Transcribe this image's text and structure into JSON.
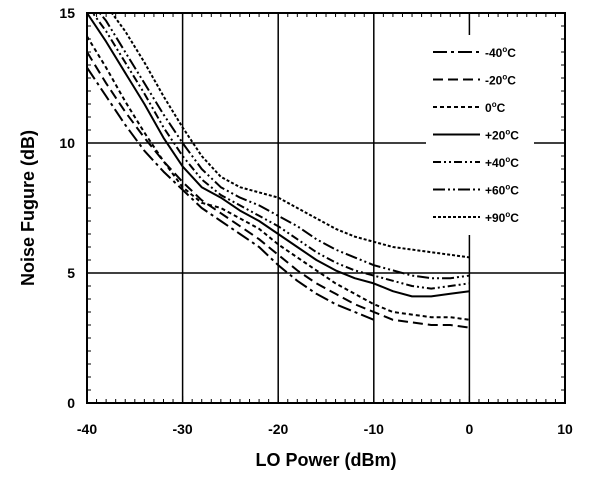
{
  "chart_data": {
    "type": "line",
    "title": "",
    "xlabel": "LO Power (dBm)",
    "ylabel": "Noise Fugure (dB)",
    "xlim": [
      -40,
      10
    ],
    "ylim": [
      0,
      15
    ],
    "xticks": [
      -40,
      -30,
      -20,
      -10,
      0,
      10
    ],
    "yticks": [
      0,
      5,
      10,
      15
    ],
    "x_tick_labels": [
      "-40",
      "-30",
      "-20",
      "-10",
      "0",
      "10"
    ],
    "y_tick_labels": [
      "0",
      "5",
      "10",
      "15"
    ],
    "grid": true,
    "legend_position": "top-right",
    "series": [
      {
        "name": "-40°C",
        "label": {
          "sign": "-40",
          "degree": "o",
          "unit": "C"
        },
        "dash": "14,4,3,4",
        "x": [
          -40,
          -38,
          -36,
          -34,
          -32,
          -30,
          -28,
          -26,
          -24,
          -22,
          -20,
          -18,
          -16,
          -14,
          -12,
          -10
        ],
        "y": [
          12.9,
          11.8,
          10.7,
          9.7,
          8.9,
          8.2,
          7.5,
          7.0,
          6.5,
          6.0,
          5.3,
          4.7,
          4.2,
          3.8,
          3.5,
          3.2
        ]
      },
      {
        "name": "-20°C",
        "label": {
          "sign": "-20",
          "degree": "o",
          "unit": "C"
        },
        "dash": "10,5",
        "x": [
          -40,
          -38,
          -36,
          -34,
          -32,
          -30,
          -28,
          -26,
          -24,
          -22,
          -20,
          -18,
          -16,
          -14,
          -12,
          -10,
          -8,
          -6,
          -4,
          -2,
          0
        ],
        "y": [
          13.5,
          12.3,
          11.2,
          10.2,
          9.3,
          8.5,
          7.8,
          7.3,
          6.8,
          6.3,
          5.7,
          5.1,
          4.6,
          4.2,
          3.8,
          3.5,
          3.2,
          3.1,
          3.0,
          3.0,
          2.9
        ]
      },
      {
        "name": "0°C",
        "label": {
          "sign": "0",
          "degree": "o",
          "unit": "C"
        },
        "dash": "4,3",
        "x": [
          -40,
          -38,
          -36,
          -34,
          -32,
          -30,
          -28,
          -26,
          -24,
          -22,
          -20,
          -18,
          -16,
          -14,
          -12,
          -10,
          -8,
          -6,
          -4,
          -2,
          0
        ],
        "y": [
          14.1,
          12.9,
          11.6,
          10.4,
          9.3,
          8.3,
          7.7,
          7.5,
          7.1,
          6.7,
          6.1,
          5.6,
          5.1,
          4.6,
          4.2,
          3.8,
          3.5,
          3.4,
          3.3,
          3.3,
          3.2
        ]
      },
      {
        "name": "+20°C",
        "label": {
          "sign": "+20",
          "degree": "o",
          "unit": "C"
        },
        "dash": "",
        "x": [
          -40,
          -38,
          -36,
          -34,
          -32,
          -30,
          -28,
          -26,
          -24,
          -22,
          -20,
          -18,
          -16,
          -14,
          -12,
          -10,
          -8,
          -6,
          -4,
          -2,
          0
        ],
        "y": [
          15.0,
          13.9,
          12.7,
          11.5,
          10.2,
          9.1,
          8.3,
          7.9,
          7.4,
          7.0,
          6.5,
          6.0,
          5.5,
          5.1,
          4.8,
          4.6,
          4.3,
          4.1,
          4.1,
          4.2,
          4.3
        ]
      },
      {
        "name": "+40°C",
        "label": {
          "sign": "+40",
          "degree": "o",
          "unit": "C"
        },
        "dash": "8,3,2,3,2,3",
        "x": [
          -40,
          -38,
          -36,
          -34,
          -32,
          -30,
          -28,
          -26,
          -24,
          -22,
          -20,
          -18,
          -16,
          -14,
          -12,
          -10,
          -8,
          -6,
          -4,
          -2,
          0
        ],
        "y": [
          15.3,
          14.3,
          13.1,
          11.9,
          10.6,
          9.5,
          8.6,
          8.0,
          7.6,
          7.2,
          6.8,
          6.3,
          5.8,
          5.4,
          5.1,
          4.9,
          4.7,
          4.5,
          4.4,
          4.5,
          4.6
        ]
      },
      {
        "name": "+60°C",
        "label": {
          "sign": "+60",
          "degree": "o",
          "unit": "C"
        },
        "dash": "12,3,2,3,2,3",
        "x": [
          -40,
          -38,
          -36,
          -34,
          -32,
          -30,
          -28,
          -26,
          -24,
          -22,
          -20,
          -18,
          -16,
          -14,
          -12,
          -10,
          -8,
          -6,
          -4,
          -2,
          0
        ],
        "y": [
          15.6,
          14.7,
          13.5,
          12.3,
          11.1,
          10.0,
          9.0,
          8.3,
          7.9,
          7.6,
          7.2,
          6.8,
          6.3,
          5.9,
          5.6,
          5.3,
          5.1,
          4.9,
          4.8,
          4.8,
          4.9
        ]
      },
      {
        "name": "+90°C",
        "label": {
          "sign": "+90",
          "degree": "o",
          "unit": "C"
        },
        "dash": "3,2",
        "x": [
          -40,
          -38,
          -36,
          -34,
          -32,
          -30,
          -28,
          -26,
          -24,
          -22,
          -20,
          -18,
          -16,
          -14,
          -12,
          -10,
          -8,
          -6,
          -4,
          -2,
          0
        ],
        "y": [
          16.0,
          15.3,
          14.3,
          13.1,
          11.8,
          10.6,
          9.5,
          8.7,
          8.3,
          8.1,
          7.9,
          7.5,
          7.1,
          6.7,
          6.4,
          6.2,
          6.0,
          5.9,
          5.8,
          5.7,
          5.6
        ]
      }
    ]
  }
}
